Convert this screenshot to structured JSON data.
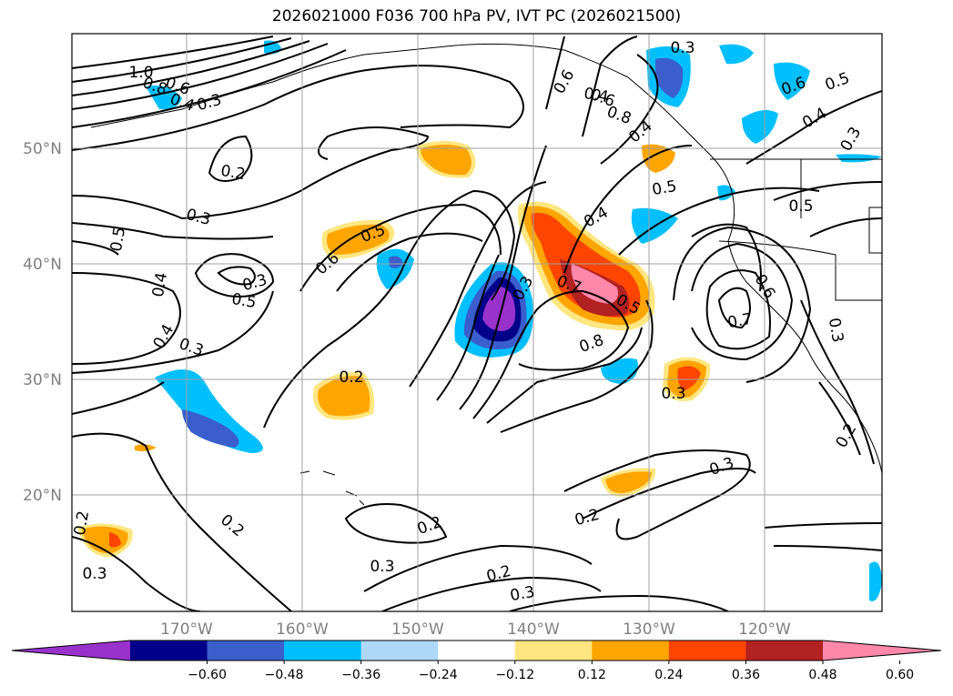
{
  "title": "2026021000 F036 700 hPa PV, IVT PC (2026021500)",
  "lat_ticks": [
    "50°N",
    "40°N",
    "30°N",
    "20°N"
  ],
  "lon_ticks": [
    "170°W",
    "160°W",
    "150°W",
    "140°W",
    "130°W",
    "120°W"
  ],
  "colorbar": {
    "ticks": [
      "−0.60",
      "−0.48",
      "−0.36",
      "−0.24",
      "−0.12",
      "0.12",
      "0.24",
      "0.36",
      "0.48",
      "0.60"
    ],
    "colors": [
      "#9932cc",
      "#00008b",
      "#3a5fcd",
      "#00bfff",
      "#add8f7",
      "#ffffff",
      "#ffe680",
      "#ffa500",
      "#ff4500",
      "#b22222",
      "#ff88aa"
    ]
  },
  "contour_labels": [
    "1.0",
    "0.8",
    "0.6",
    "0.4",
    "0.3",
    "0.2",
    "0.3",
    "0.5",
    "0.4",
    "0.5",
    "0.4",
    "0.3",
    "0.6",
    "0.5",
    "0.3",
    "0.2",
    "0.6",
    "0.4",
    "0.8",
    "0.6",
    "0.4",
    "0.3",
    "0.5",
    "0.6",
    "0.5",
    "0.4",
    "0.3",
    "0.5",
    "0.4",
    "0.7",
    "0.5",
    "0.8",
    "0.7",
    "0.6",
    "0.3",
    "0.2",
    "0.3",
    "0.2",
    "0.2",
    "0.3",
    "0.2",
    "0.3",
    "0.3",
    "0.2",
    "0.2",
    "0.3",
    "0.3"
  ]
}
